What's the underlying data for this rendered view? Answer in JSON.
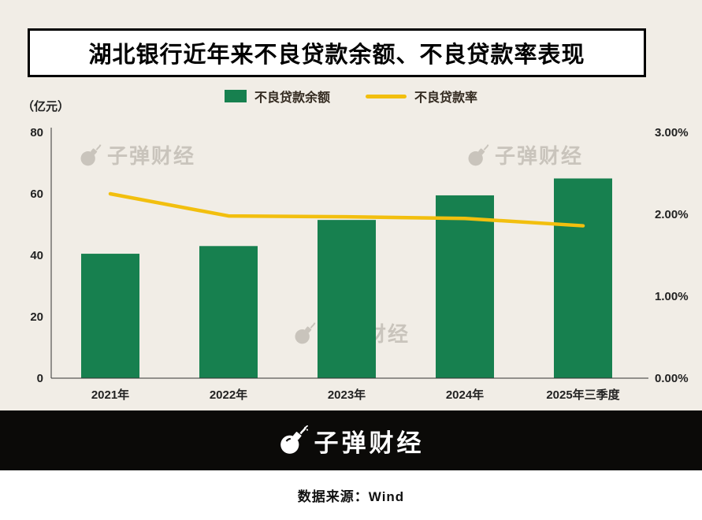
{
  "title": "湖北银行近年来不良贷款余额、不良贷款率表现",
  "unit_label": "（亿元）",
  "watermark": {
    "text": "子弹财经"
  },
  "footer": {
    "brand": "子弹财经",
    "source": "数据来源：Wind"
  },
  "colors": {
    "bar": "#17804f",
    "line": "#f2bf0e",
    "background": "#f1ede6",
    "axis": "#333333",
    "footer_band": "#0b0a08",
    "watermark": "#aaa49a"
  },
  "chart_data": {
    "type": "bar",
    "subtype": "bar+line dual axis",
    "title": "湖北银行近年来不良贷款余额、不良贷款率表现",
    "categories": [
      "2021年",
      "2022年",
      "2023年",
      "2024年",
      "2025年三季度"
    ],
    "series": [
      {
        "name": "不良贷款余额",
        "type": "bar",
        "axis": "left",
        "color": "#17804f",
        "values": [
          40.5,
          43.0,
          51.5,
          59.5,
          65.0
        ]
      },
      {
        "name": "不良贷款率",
        "type": "line",
        "axis": "right",
        "color": "#f2bf0e",
        "values": [
          2.25,
          1.98,
          1.97,
          1.95,
          1.86
        ]
      }
    ],
    "left_axis": {
      "label": "（亿元）",
      "ticks": [
        0,
        20,
        40,
        60,
        80
      ],
      "max": 80
    },
    "right_axis": {
      "tick_labels": [
        "0.00%",
        "1.00%",
        "2.00%",
        "3.00%"
      ],
      "tick_values": [
        0,
        1,
        2,
        3
      ],
      "max": 3
    },
    "grid": false,
    "legend_position": "top"
  }
}
